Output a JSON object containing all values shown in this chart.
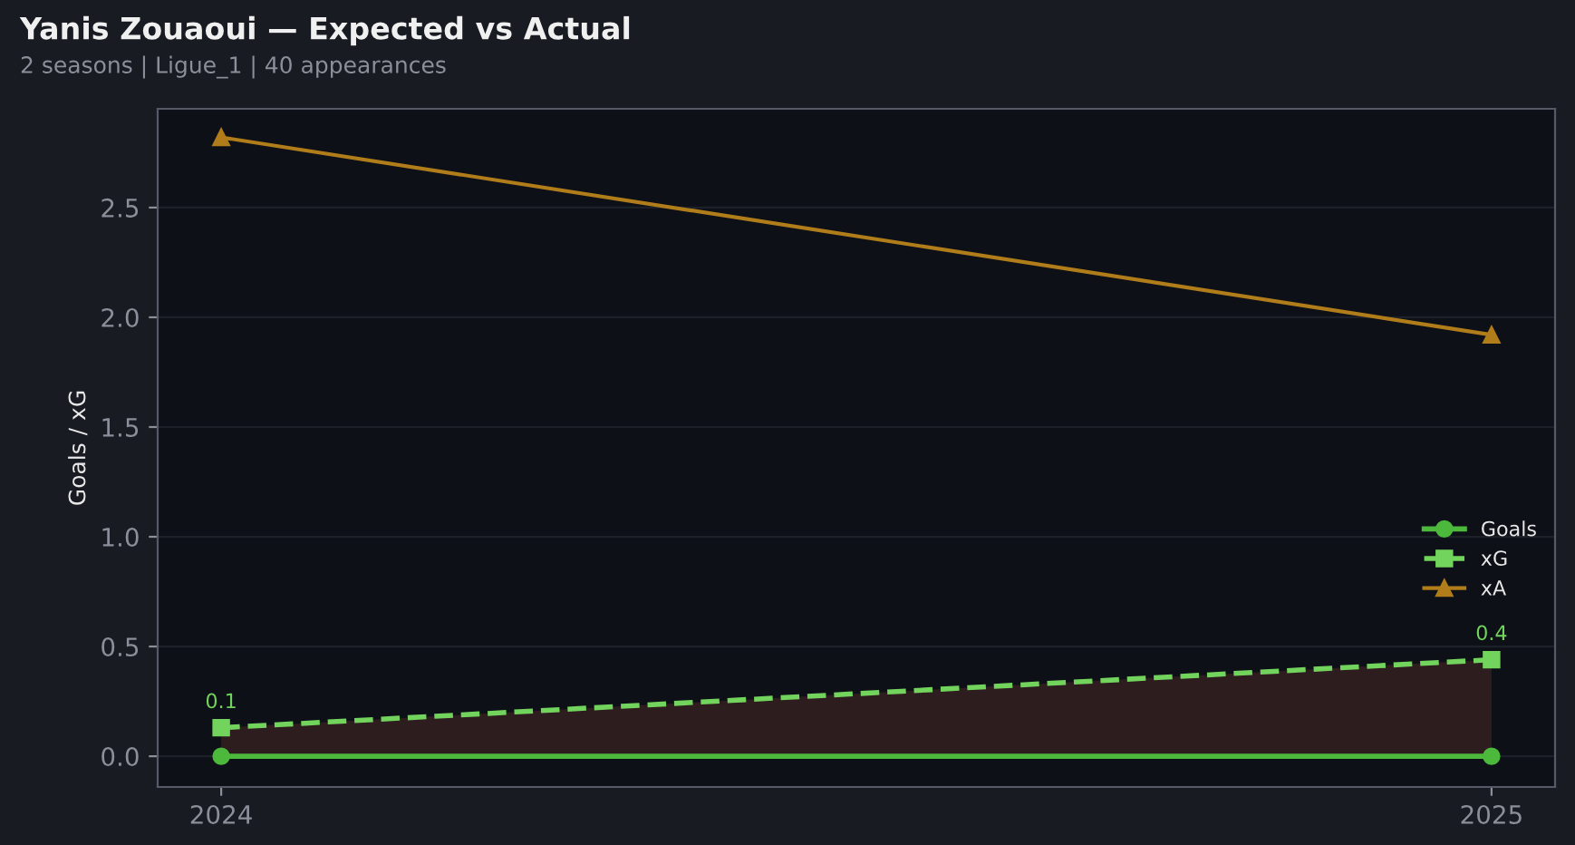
{
  "chart_data": {
    "type": "line",
    "title": "Yanis Zouaoui — Expected vs Actual",
    "subtitle": "2 seasons | Ligue_1 | 40 appearances",
    "ylabel": "Goals / xG",
    "x": [
      2024,
      2025
    ],
    "xlim": [
      2023.95,
      2025.05
    ],
    "xticks": [
      2024,
      2025
    ],
    "ylim": [
      -0.14,
      2.95
    ],
    "yticks": [
      {
        "value": 0,
        "label": "0.0"
      },
      0.5,
      {
        "value": 1,
        "label": "1.0"
      },
      1.5,
      {
        "value": 2,
        "label": "2.0"
      },
      2.5
    ],
    "series": [
      {
        "name": "Goals",
        "color": "#4cb83c",
        "values": [
          0,
          0
        ],
        "marker": "circle",
        "line_style": "solid"
      },
      {
        "name": "xG",
        "color": "#72d45c",
        "values": [
          0.13,
          0.44
        ],
        "marker": "square",
        "line_style": "dashed",
        "value_labels": [
          "0.1",
          "0.4"
        ],
        "lower": [
          0,
          0
        ],
        "upper": [
          0.13,
          0.44
        ]
      },
      {
        "name": "xA",
        "color": "#b07d1a",
        "values": [
          2.82,
          1.92
        ],
        "marker": "triangle",
        "line_style": "solid"
      }
    ],
    "grid": "y",
    "legend": "bottom right"
  }
}
